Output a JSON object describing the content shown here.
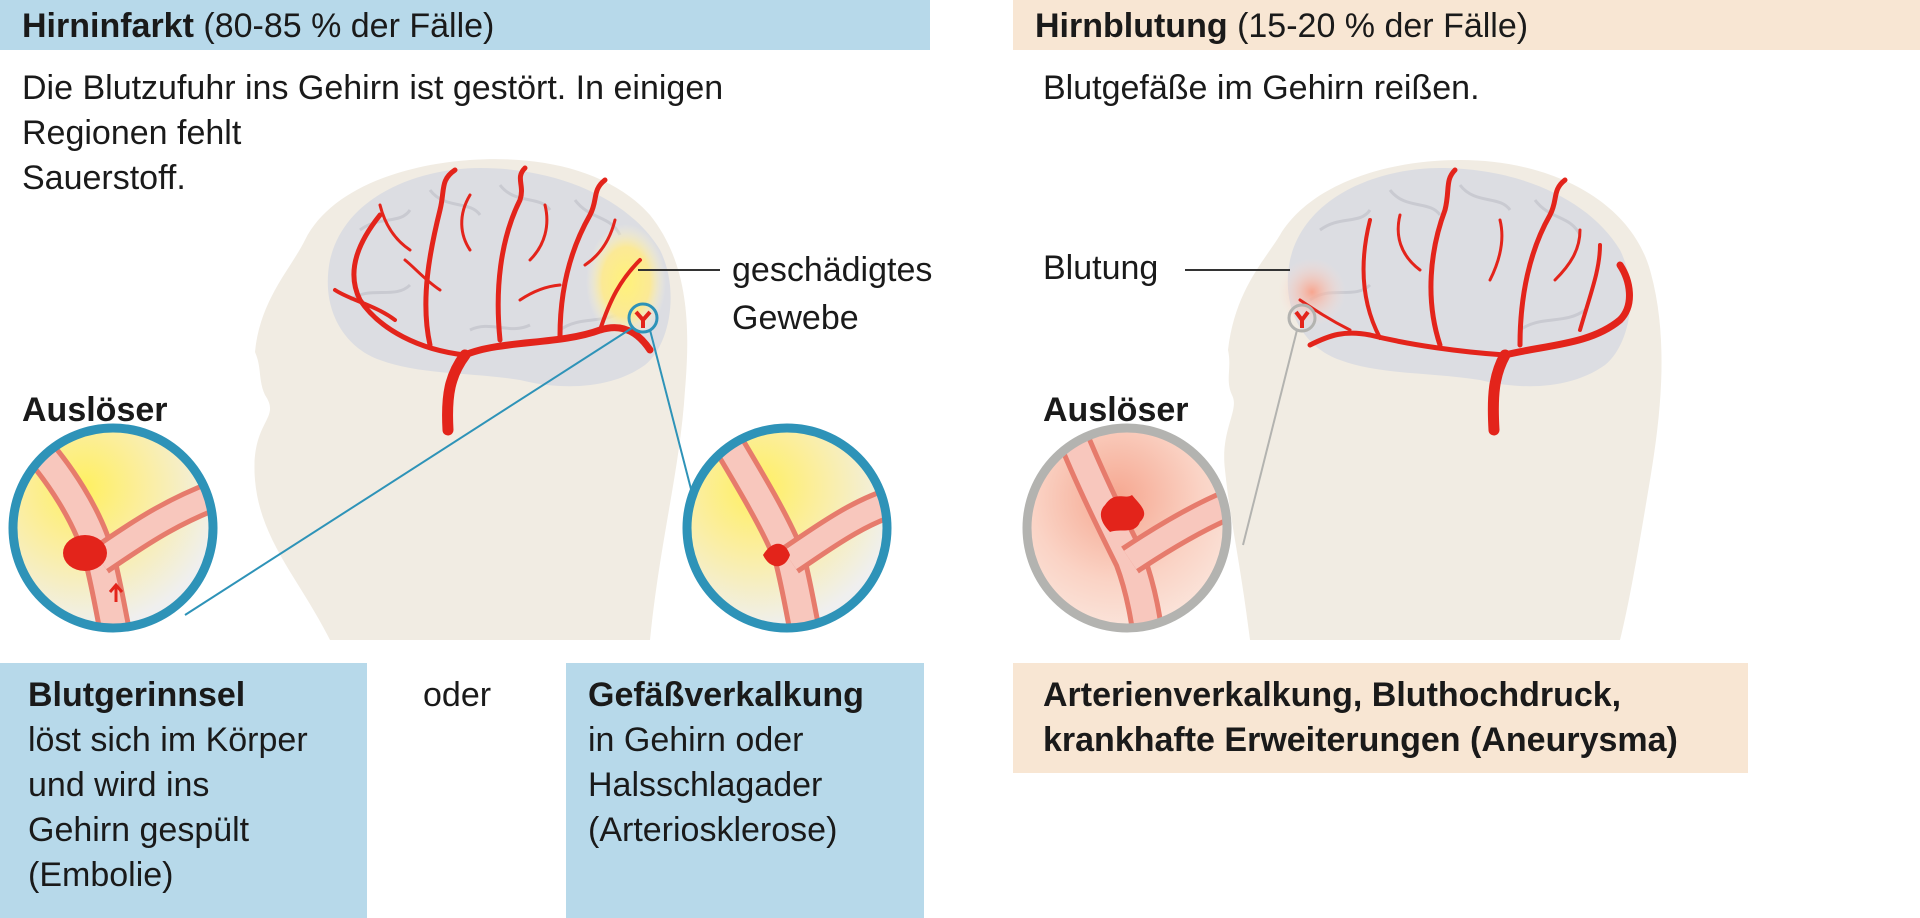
{
  "left": {
    "header_bold": "Hirninfarkt",
    "header_rest": " (80-85 % der Fälle)",
    "desc_line1": "Die Blutzufuhr ins Gehirn ist gestört. In einigen",
    "desc_line2": "Regionen fehlt",
    "desc_line3": "Sauerstoff.",
    "damage_label_line1": "geschädigtes",
    "damage_label_line2": "Gewebe",
    "trigger_label": "Auslöser",
    "cause1_title": "Blutgerinnsel",
    "cause1_line1": "löst sich im Körper",
    "cause1_line2": "und wird ins",
    "cause1_line3": "Gehirn gespült",
    "cause1_line4": "(Embolie)",
    "or_label": "oder",
    "cause2_title": "Gefäßverkalkung",
    "cause2_line1": "in Gehirn oder",
    "cause2_line2": "Halsschlagader",
    "cause2_line3": "(Arteriosklerose)"
  },
  "right": {
    "header_bold": "Hirnblutung",
    "header_rest": " (15-20 % der Fälle)",
    "desc_line1": "Blutgefäße im Gehirn reißen.",
    "bleeding_label": "Blutung",
    "trigger_label": "Auslöser",
    "cause_line1": "Arterienverkalkung, Bluthochdruck,",
    "cause_line2": "krankhafte Erweiterungen (Aneurysma)"
  },
  "colors": {
    "header_blue": "#b7d9ea",
    "header_beige": "#f8e6d3",
    "vessel_red": "#e3241b",
    "head_skin": "#f1ece3",
    "brain_gray": "#dcdde2",
    "zoom_ring_blue": "#2e93b8",
    "zoom_ring_gray": "#b3b3b0"
  }
}
